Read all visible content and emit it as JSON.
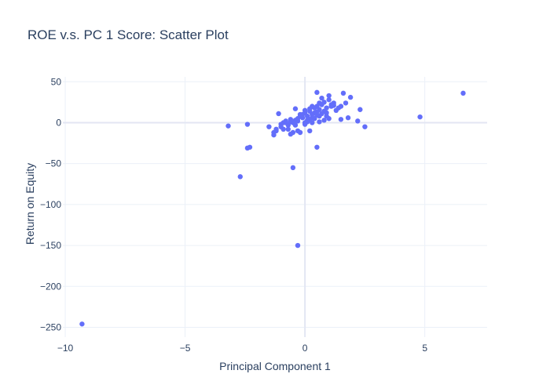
{
  "chart_data": {
    "type": "scatter",
    "title": "ROE v.s. PC 1 Score: Scatter Plot",
    "xlabel": "Principal Component 1",
    "ylabel": "Return on Equity",
    "xlim": [
      -10.1,
      7.6
    ],
    "ylim": [
      -262,
      56
    ],
    "xticks": [
      -10,
      -5,
      0,
      5
    ],
    "xtick_labels": [
      "−10",
      "−5",
      "0",
      "5"
    ],
    "yticks": [
      50,
      0,
      -50,
      -100,
      -150,
      -200,
      -250
    ],
    "ytick_labels": [
      "50",
      "0",
      "−50",
      "−100",
      "−150",
      "−200",
      "−250"
    ],
    "grid": true,
    "legend": false,
    "marker_color": "#636efa",
    "points": [
      [
        -9.3,
        -246
      ],
      [
        -3.2,
        -4
      ],
      [
        -2.4,
        -2
      ],
      [
        -2.7,
        -66
      ],
      [
        -2.4,
        -31
      ],
      [
        -2.3,
        -30
      ],
      [
        -0.3,
        -150
      ],
      [
        -0.5,
        -55
      ],
      [
        0.5,
        -30
      ],
      [
        4.8,
        7
      ],
      [
        6.6,
        36
      ],
      [
        -1.5,
        -5
      ],
      [
        -1.3,
        -15
      ],
      [
        -1.2,
        -10
      ],
      [
        -1.0,
        -5
      ],
      [
        -0.9,
        0
      ],
      [
        -0.8,
        2
      ],
      [
        -0.7,
        -8
      ],
      [
        -0.6,
        4
      ],
      [
        -0.5,
        -12
      ],
      [
        -0.4,
        3
      ],
      [
        -0.3,
        5
      ],
      [
        -0.2,
        8
      ],
      [
        -0.1,
        10
      ],
      [
        0.0,
        12
      ],
      [
        0.1,
        8
      ],
      [
        0.2,
        14
      ],
      [
        0.3,
        6
      ],
      [
        0.4,
        18
      ],
      [
        0.5,
        20
      ],
      [
        0.6,
        16
      ],
      [
        0.7,
        22
      ],
      [
        0.8,
        25
      ],
      [
        0.9,
        12
      ],
      [
        1.0,
        28
      ],
      [
        1.1,
        20
      ],
      [
        1.2,
        24
      ],
      [
        1.3,
        15
      ],
      [
        1.5,
        20
      ],
      [
        1.7,
        24
      ],
      [
        2.3,
        16
      ],
      [
        2.5,
        -5
      ],
      [
        0.5,
        37
      ],
      [
        1.6,
        36
      ],
      [
        1.0,
        33
      ],
      [
        1.9,
        31
      ],
      [
        0.7,
        30
      ],
      [
        -1.1,
        11
      ],
      [
        -0.4,
        17
      ],
      [
        2.2,
        2
      ],
      [
        1.5,
        4
      ],
      [
        1.8,
        6
      ],
      [
        -0.9,
        -8
      ],
      [
        -0.6,
        -14
      ],
      [
        -0.2,
        -12
      ],
      [
        0.2,
        -10
      ],
      [
        -1.2,
        -8
      ],
      [
        -1.3,
        -12
      ],
      [
        0.0,
        0
      ],
      [
        0.1,
        3
      ],
      [
        0.3,
        10
      ],
      [
        0.4,
        12
      ],
      [
        0.6,
        8
      ],
      [
        0.8,
        14
      ],
      [
        -0.3,
        2
      ],
      [
        -0.5,
        0
      ],
      [
        -0.7,
        -3
      ],
      [
        -0.8,
        0
      ],
      [
        -0.1,
        6
      ],
      [
        0.2,
        4
      ],
      [
        0.9,
        18
      ],
      [
        1.1,
        22
      ],
      [
        0.6,
        24
      ],
      [
        0.3,
        20
      ],
      [
        0.0,
        15
      ],
      [
        -0.2,
        10
      ],
      [
        0.5,
        9
      ],
      [
        0.7,
        11
      ],
      [
        0.4,
        5
      ],
      [
        0.1,
        1
      ],
      [
        -0.4,
        -3
      ],
      [
        -0.6,
        1
      ],
      [
        0.9,
        8
      ],
      [
        1.0,
        5
      ],
      [
        0.6,
        1
      ],
      [
        0.3,
        0
      ],
      [
        0.8,
        3
      ],
      [
        -1.0,
        -2
      ],
      [
        -0.3,
        -10
      ],
      [
        0.0,
        -2
      ],
      [
        0.5,
        13
      ],
      [
        0.2,
        17
      ],
      [
        1.4,
        18
      ],
      [
        1.2,
        21
      ]
    ]
  }
}
